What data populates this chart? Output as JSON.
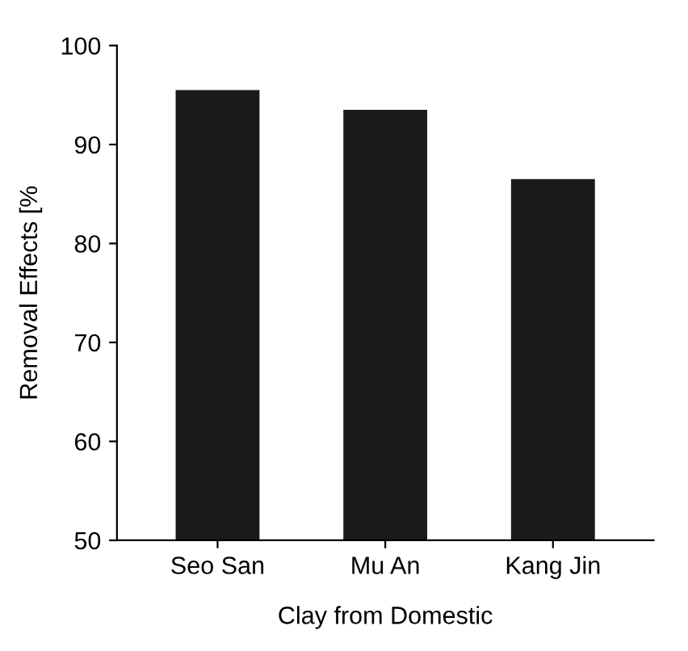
{
  "chart_data": {
    "type": "bar",
    "xlabel": "Clay from Domestic",
    "ylabel": "Removal Effects [%",
    "categories": [
      "Seo San",
      "Mu An",
      "Kang Jin"
    ],
    "values": [
      95.5,
      93.5,
      86.5
    ],
    "color": "#1a1a1a",
    "ylim": [
      50,
      100
    ],
    "yticks": [
      50,
      60,
      70,
      80,
      90,
      100
    ],
    "grid": false
  }
}
